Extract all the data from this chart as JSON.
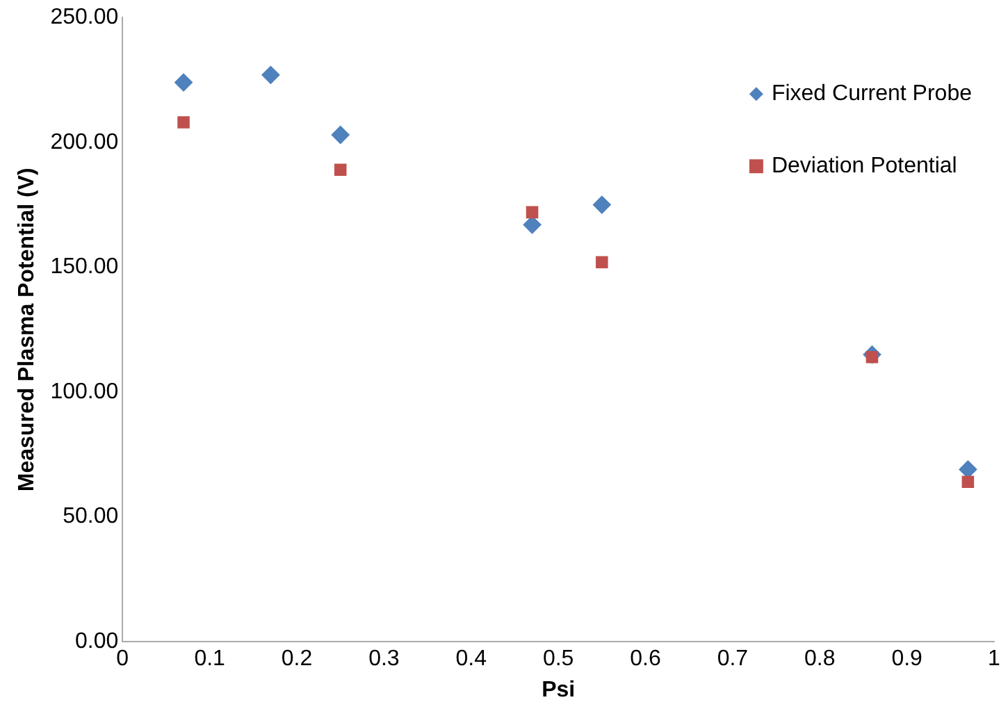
{
  "chart_data": {
    "type": "scatter",
    "xlabel": "Psi",
    "ylabel": "Measured Plasma Potential (V)",
    "xlim": [
      0,
      1
    ],
    "xticks": [
      0,
      0.1,
      0.2,
      0.3,
      0.4,
      0.5,
      0.6,
      0.7,
      0.8,
      0.9,
      1
    ],
    "ylim": [
      0,
      250
    ],
    "yticks": [
      {
        "value": 0,
        "label": "0.00"
      },
      {
        "value": 50,
        "label": "50.00"
      },
      {
        "value": 100,
        "label": "100.00"
      },
      {
        "value": 150,
        "label": "150.00"
      },
      {
        "value": 200,
        "label": "200.00"
      },
      {
        "value": 250,
        "label": "250.00"
      }
    ],
    "grid": false,
    "legend": "top right",
    "series": [
      {
        "name": "Fixed Current Probe",
        "color": "#4f81bd",
        "marker": "diamond",
        "x": [
          0.07,
          0.17,
          0.25,
          0.47,
          0.55,
          0.86,
          0.97
        ],
        "values": [
          224,
          227,
          203,
          167,
          175,
          115,
          69
        ]
      },
      {
        "name": "Deviation Potential",
        "color": "#c0504d",
        "marker": "square",
        "x": [
          0.07,
          0.25,
          0.47,
          0.55,
          0.86,
          0.97
        ],
        "values": [
          208,
          189,
          172,
          152,
          114,
          64
        ]
      }
    ]
  }
}
